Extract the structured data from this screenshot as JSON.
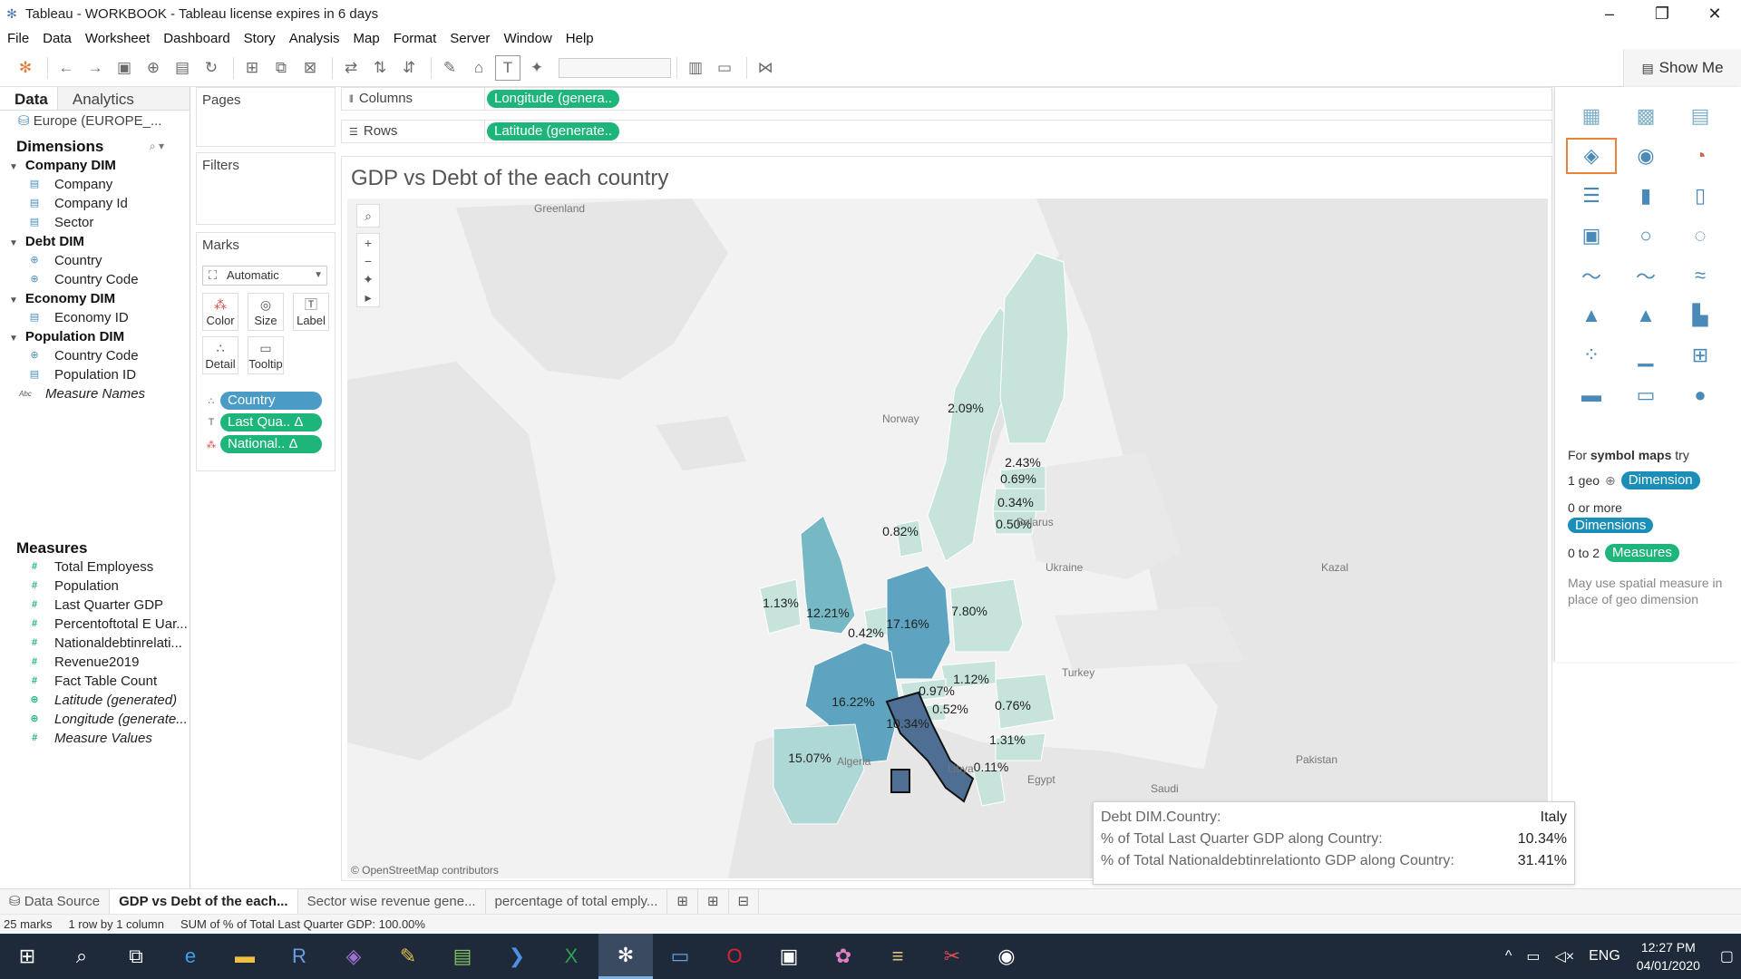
{
  "window": {
    "title": "Tableau - WORKBOOK - Tableau license expires in 6 days"
  },
  "menu": [
    "File",
    "Data",
    "Worksheet",
    "Dashboard",
    "Story",
    "Analysis",
    "Map",
    "Format",
    "Server",
    "Window",
    "Help"
  ],
  "toolbar": {
    "show_me_label": "Show Me"
  },
  "data_pane": {
    "tab_data": "Data",
    "tab_analytics": "Analytics",
    "datasource": "Europe (EUROPE_...",
    "dimensions_label": "Dimensions",
    "dimension_groups": [
      {
        "name": "Company DIM",
        "fields": [
          {
            "name": "Company",
            "icon": "dim-icon"
          },
          {
            "name": "Company Id",
            "icon": "dim-icon"
          },
          {
            "name": "Sector",
            "icon": "dim-icon"
          }
        ]
      },
      {
        "name": "Debt DIM",
        "fields": [
          {
            "name": "Country",
            "icon": "globe-icon"
          },
          {
            "name": "Country Code",
            "icon": "globe-icon"
          }
        ]
      },
      {
        "name": "Economy DIM",
        "fields": [
          {
            "name": "Economy ID",
            "icon": "dim-icon"
          }
        ]
      },
      {
        "name": "Population DIM",
        "fields": [
          {
            "name": "Country Code",
            "icon": "globe-icon"
          },
          {
            "name": "Population ID",
            "icon": "dim-icon"
          }
        ]
      }
    ],
    "measure_names": "Measure Names",
    "measures_label": "Measures",
    "measures": [
      {
        "name": "Total Employess",
        "italic": false
      },
      {
        "name": "Population",
        "italic": false
      },
      {
        "name": "Last Quarter GDP",
        "italic": false
      },
      {
        "name": "Percentoftotal E Uar...",
        "italic": false
      },
      {
        "name": "Nationaldebtinrelati...",
        "italic": false
      },
      {
        "name": "Revenue2019",
        "italic": false
      },
      {
        "name": "Fact Table Count",
        "italic": false
      },
      {
        "name": "Latitude (generated)",
        "italic": true
      },
      {
        "name": "Longitude (generate...",
        "italic": true
      },
      {
        "name": "Measure Values",
        "italic": true
      }
    ]
  },
  "shelves": {
    "pages": "Pages",
    "filters": "Filters",
    "marks": "Marks",
    "marks_type": "Automatic",
    "mark_buttons": [
      "Color",
      "Size",
      "Label",
      "Detail",
      "Tooltip"
    ],
    "mark_pills": [
      "Country",
      "Last Qua.. Δ",
      "National.. Δ"
    ],
    "columns_label": "Columns",
    "columns_pill": "Longitude (genera..",
    "rows_label": "Rows",
    "rows_pill": "Latitude (generate.."
  },
  "view": {
    "title": "GDP vs Debt of the each country",
    "map_places": [
      "Greenland",
      "Norway",
      "Belarus",
      "Ukraine",
      "Kazal",
      "Turkey",
      "Algeria",
      "Libya",
      "Egypt",
      "Saudi",
      "Pakistan"
    ],
    "attribution": "© OpenStreetMap contributors",
    "colors": {
      "light": "#c6e4dc",
      "mid": "#76b9c4",
      "dark": "#3f7faa",
      "darkest": "#4e6f93"
    }
  },
  "chart_data": {
    "type": "filled-map",
    "measure": "% of Total Last Quarter GDP along Country",
    "labels": [
      {
        "country": "Sweden",
        "value": "2.09%"
      },
      {
        "country": "Finland",
        "value": "2.43%"
      },
      {
        "country": "Estonia",
        "value": "0.69%"
      },
      {
        "country": "Latvia",
        "value": "0.34%"
      },
      {
        "country": "Lithuania",
        "value": "0.50%"
      },
      {
        "country": "Denmark",
        "value": "0.82%"
      },
      {
        "country": "Ireland",
        "value": "1.13%"
      },
      {
        "country": "United Kingdom",
        "value": "12.21%"
      },
      {
        "country": "Netherlands",
        "value": "0.42%"
      },
      {
        "country": "Germany",
        "value": "17.16%"
      },
      {
        "country": "Poland",
        "value": "7.80%"
      },
      {
        "country": "Hungary",
        "value": "1.12%"
      },
      {
        "country": "Austria",
        "value": "0.97%"
      },
      {
        "country": "France",
        "value": "16.22%"
      },
      {
        "country": "Slovenia",
        "value": "0.52%"
      },
      {
        "country": "Romania",
        "value": "0.76%"
      },
      {
        "country": "Italy",
        "value": "10.34%"
      },
      {
        "country": "Bulgaria",
        "value": "1.31%"
      },
      {
        "country": "Spain",
        "value": "15.07%"
      },
      {
        "country": "Greece",
        "value": "0.11%"
      }
    ]
  },
  "tooltip": {
    "rows": [
      {
        "label": "Debt DIM.Country:",
        "value": "Italy"
      },
      {
        "label": "% of Total Last Quarter GDP along Country:",
        "value": "10.34%"
      },
      {
        "label": "% of Total Nationaldebtinrelationto GDP along Country:",
        "value": "31.41%"
      }
    ]
  },
  "show_me": {
    "hint_prefix": "For ",
    "hint_bold": "symbol maps",
    "hint_suffix": " try",
    "geo_count": "1 geo",
    "dimension_pill": "Dimension",
    "zero_or_more": "0 or more",
    "dimensions_pill": "Dimensions",
    "zero_to_two": "0 to 2",
    "measures_pill": "Measures",
    "note": "May use spatial measure in place of geo dimension"
  },
  "sheet_tabs": [
    "Data Source",
    "GDP vs Debt of the each...",
    "Sector wise revenue gene...",
    "percentage of total emply..."
  ],
  "status": {
    "marks": "25 marks",
    "layout": "1 row by 1 column",
    "sum": "SUM of % of Total Last Quarter GDP: 100.00%"
  },
  "taskbar": {
    "lang": "ENG",
    "time": "12:27 PM",
    "date": "04/01/2020"
  }
}
